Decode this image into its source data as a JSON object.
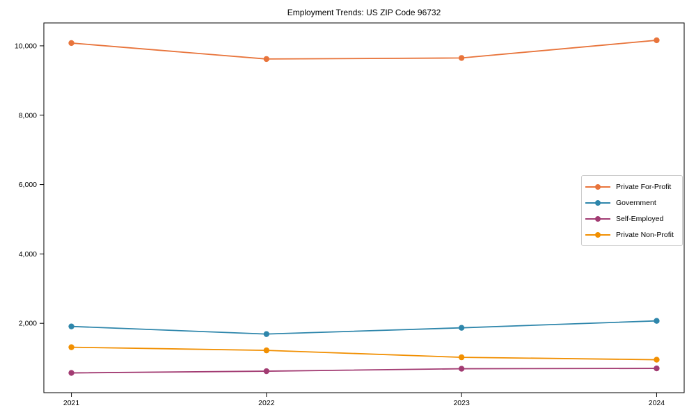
{
  "chart": {
    "title": "Employment Trends: US ZIP Code 96732"
  },
  "chart_data": {
    "type": "line",
    "title": "Employment Trends: US ZIP Code 96732",
    "xlabel": "",
    "ylabel": "",
    "x": [
      "2021",
      "2022",
      "2023",
      "2024"
    ],
    "series": [
      {
        "name": "Private For-Profit",
        "color": "#E8743B",
        "values": [
          10080,
          9620,
          9650,
          10160
        ]
      },
      {
        "name": "Government",
        "color": "#2E86AB",
        "values": [
          1910,
          1690,
          1870,
          2070
        ]
      },
      {
        "name": "Self-Employed",
        "color": "#A23B72",
        "values": [
          570,
          620,
          690,
          700
        ]
      },
      {
        "name": "Private Non-Profit",
        "color": "#F18F01",
        "values": [
          1310,
          1220,
          1020,
          950
        ]
      }
    ],
    "ylim": [
      0,
      10660
    ],
    "yticks": [
      2000,
      4000,
      6000,
      8000,
      10000
    ],
    "ytick_labels": [
      "2,000",
      "4,000",
      "6,000",
      "8,000",
      "10,000"
    ],
    "grid": false,
    "legend_position": "center right",
    "marker": "circle",
    "axis_color": "#000000",
    "tick_label_color": "#000000",
    "legend_border_color": "#cccccc"
  }
}
